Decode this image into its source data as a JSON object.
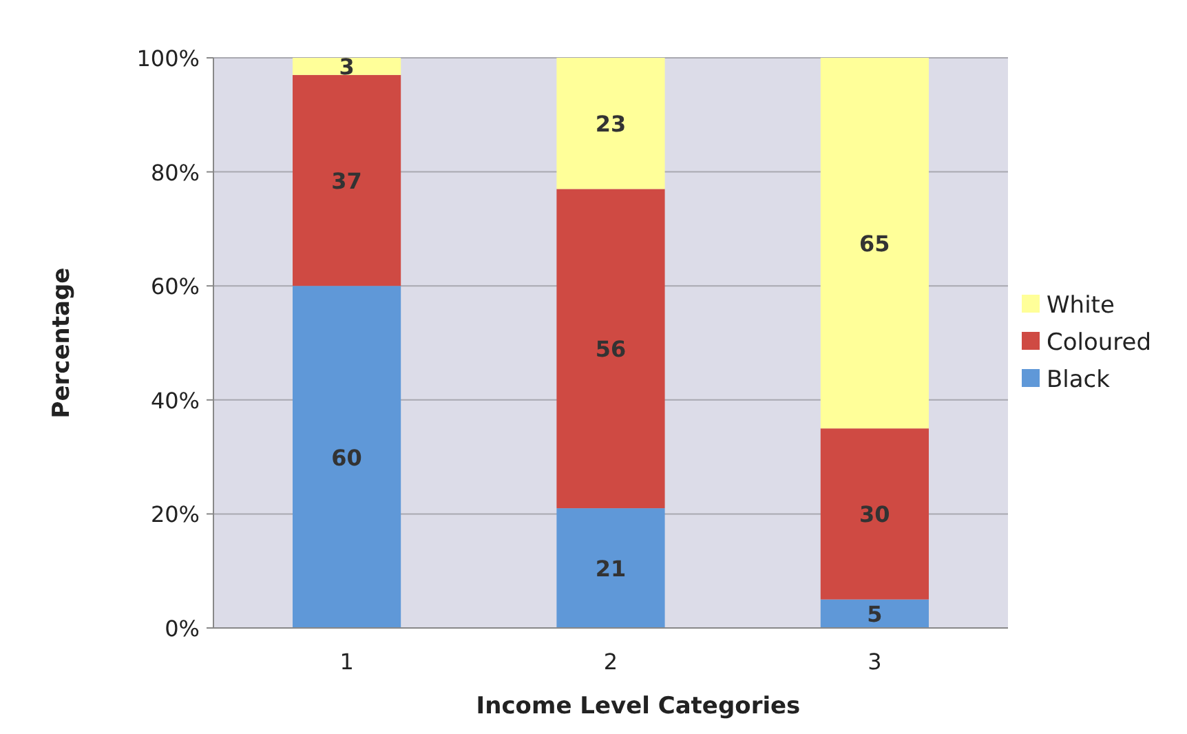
{
  "chart_data": {
    "type": "bar",
    "stacked": true,
    "xlabel": "Income Level Categories",
    "ylabel": "Percentage",
    "categories": [
      "1",
      "2",
      "3"
    ],
    "series": [
      {
        "name": "Black",
        "color": "#5f98d8",
        "values": [
          60,
          21,
          5
        ]
      },
      {
        "name": "Coloured",
        "color": "#cf4a43",
        "values": [
          37,
          56,
          30
        ]
      },
      {
        "name": "White",
        "color": "#ffff99",
        "values": [
          3,
          23,
          65
        ]
      }
    ],
    "ylim": [
      0,
      100
    ],
    "yticks": [
      {
        "value": 0,
        "label": "0%"
      },
      {
        "value": 20,
        "label": "20%"
      },
      {
        "value": 40,
        "label": "40%"
      },
      {
        "value": 60,
        "label": "60%"
      },
      {
        "value": 80,
        "label": "80%"
      },
      {
        "value": 100,
        "label": "100%"
      }
    ],
    "grid": "y",
    "legend": "right",
    "data_labels": true
  }
}
